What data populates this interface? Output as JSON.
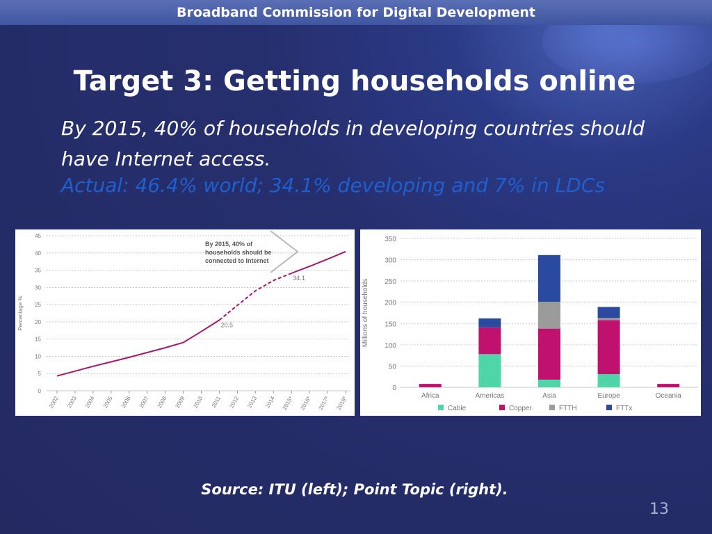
{
  "header": {
    "org": "Broadband Commission for Digital Development"
  },
  "slide": {
    "title": "Target 3: Getting households online",
    "subtitle": "By 2015, 40% of households in developing countries should have Internet access.",
    "actual": "Actual: 46.4% world; 34.1% developing and 7% in LDCs",
    "source": "Source: ITU (left); Point Topic (right).",
    "page_number": "13"
  },
  "colors": {
    "line": "#a2186b",
    "cable": "#4fd6a8",
    "copper": "#c0116f",
    "ftth": "#9b9b9b",
    "fttx": "#2a4aa0",
    "actual_text": "#1f5fd0"
  },
  "chart_data": [
    {
      "type": "line",
      "ylabel": "Percentage %",
      "ylim": [
        0,
        45
      ],
      "yticks": [
        "0",
        "5",
        "10",
        "15",
        "20",
        "25",
        "30",
        "35",
        "40",
        "45"
      ],
      "x": [
        "2002",
        "2003",
        "2004",
        "2005",
        "2006",
        "2007",
        "2008",
        "2009",
        "2010",
        "2011",
        "2012",
        "2013",
        "2014",
        "2015*",
        "2016*",
        "2017*",
        "2018*"
      ],
      "solid_values": [
        4.3,
        5.7,
        7.1,
        8.4,
        9.7,
        11.1,
        12.5,
        14.0,
        17.2,
        20.5
      ],
      "dashed_values": [
        20.5,
        24.8,
        29.0,
        32.0,
        34.1
      ],
      "solid2_values": [
        34.1,
        36.1,
        38.2,
        40.4
      ],
      "point_labels": [
        {
          "x": "2011",
          "value": "20.5"
        },
        {
          "x": "2015*",
          "value": "34.1"
        }
      ],
      "annotation": [
        "By 2015, 40% of",
        "households should be",
        "connected to Internet"
      ]
    },
    {
      "type": "bar",
      "stacked": true,
      "ylabel": "Millions of households",
      "ylim": [
        0,
        350
      ],
      "yticks": [
        "0",
        "50",
        "100",
        "150",
        "200",
        "250",
        "300",
        "350"
      ],
      "categories": [
        "Africa",
        "Americas",
        "Asia",
        "Europe",
        "Oceania"
      ],
      "series": [
        {
          "name": "Cable",
          "values": [
            0,
            78,
            18,
            31,
            0
          ]
        },
        {
          "name": "Copper",
          "values": [
            8,
            63,
            120,
            127,
            8
          ]
        },
        {
          "name": "FTTH",
          "values": [
            0,
            0,
            63,
            5,
            0
          ]
        },
        {
          "name": "FTTx",
          "values": [
            0,
            21,
            110,
            26,
            0
          ]
        }
      ]
    }
  ]
}
